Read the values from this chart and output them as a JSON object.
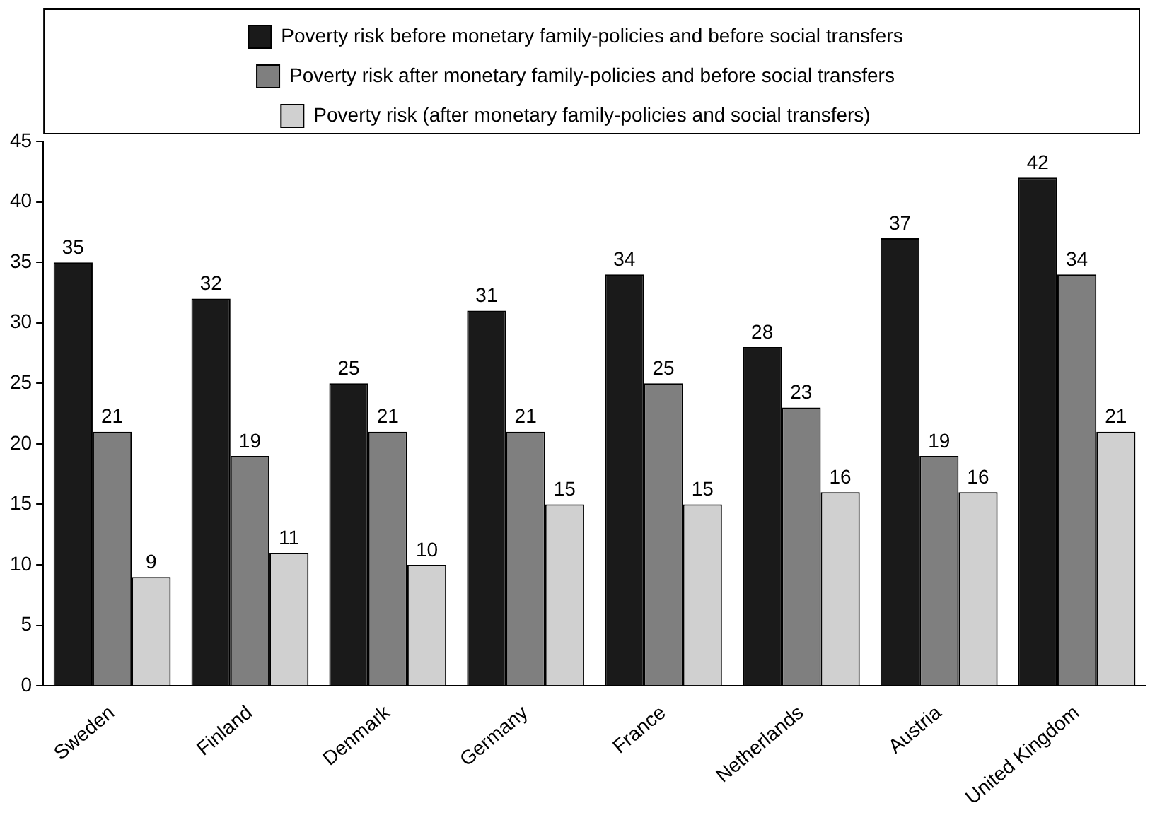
{
  "chart_data": {
    "type": "bar",
    "categories": [
      "Sweden",
      "Finland",
      "Denmark",
      "Germany",
      "France",
      "Netherlands",
      "Austria",
      "United Kingdom"
    ],
    "series": [
      {
        "name": "Poverty risk before monetary family-policies and before social transfers",
        "color": "#1a1a1a",
        "values": [
          35,
          32,
          25,
          31,
          34,
          28,
          37,
          42
        ]
      },
      {
        "name": "Poverty risk after monetary family-policies and before social transfers",
        "color": "#7f7f7f",
        "values": [
          21,
          19,
          21,
          21,
          25,
          23,
          19,
          34
        ]
      },
      {
        "name": "Poverty risk (after monetary family-policies and social transfers)",
        "color": "#d0d0d0",
        "values": [
          9,
          11,
          10,
          15,
          15,
          16,
          16,
          21
        ]
      }
    ],
    "ylim": [
      0,
      45
    ],
    "yticks": [
      0,
      5,
      10,
      15,
      20,
      25,
      30,
      35,
      40,
      45
    ],
    "grid": false,
    "legend": "top",
    "data_labels": true
  }
}
